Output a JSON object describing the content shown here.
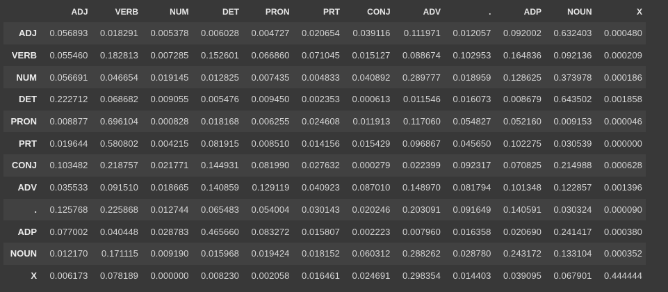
{
  "table": {
    "columns": [
      "ADJ",
      "VERB",
      "NUM",
      "DET",
      "PRON",
      "PRT",
      "CONJ",
      "ADV",
      ".",
      "ADP",
      "NOUN",
      "X"
    ],
    "rows": [
      {
        "label": "ADJ",
        "values": [
          "0.056893",
          "0.018291",
          "0.005378",
          "0.006028",
          "0.004727",
          "0.020654",
          "0.039116",
          "0.111971",
          "0.012057",
          "0.092002",
          "0.632403",
          "0.000480"
        ]
      },
      {
        "label": "VERB",
        "values": [
          "0.055460",
          "0.182813",
          "0.007285",
          "0.152601",
          "0.066860",
          "0.071045",
          "0.015127",
          "0.088674",
          "0.102953",
          "0.164836",
          "0.092136",
          "0.000209"
        ]
      },
      {
        "label": "NUM",
        "values": [
          "0.056691",
          "0.046654",
          "0.019145",
          "0.012825",
          "0.007435",
          "0.004833",
          "0.040892",
          "0.289777",
          "0.018959",
          "0.128625",
          "0.373978",
          "0.000186"
        ]
      },
      {
        "label": "DET",
        "values": [
          "0.222712",
          "0.068682",
          "0.009055",
          "0.005476",
          "0.009450",
          "0.002353",
          "0.000613",
          "0.011546",
          "0.016073",
          "0.008679",
          "0.643502",
          "0.001858"
        ]
      },
      {
        "label": "PRON",
        "values": [
          "0.008877",
          "0.696104",
          "0.000828",
          "0.018168",
          "0.006255",
          "0.024608",
          "0.011913",
          "0.117060",
          "0.054827",
          "0.052160",
          "0.009153",
          "0.000046"
        ]
      },
      {
        "label": "PRT",
        "values": [
          "0.019644",
          "0.580802",
          "0.004215",
          "0.081915",
          "0.008510",
          "0.014156",
          "0.015429",
          "0.096867",
          "0.045650",
          "0.102275",
          "0.030539",
          "0.000000"
        ]
      },
      {
        "label": "CONJ",
        "values": [
          "0.103482",
          "0.218757",
          "0.021771",
          "0.144931",
          "0.081990",
          "0.027632",
          "0.000279",
          "0.022399",
          "0.092317",
          "0.070825",
          "0.214988",
          "0.000628"
        ]
      },
      {
        "label": "ADV",
        "values": [
          "0.035533",
          "0.091510",
          "0.018665",
          "0.140859",
          "0.129119",
          "0.040923",
          "0.087010",
          "0.148970",
          "0.081794",
          "0.101348",
          "0.122857",
          "0.001396"
        ]
      },
      {
        "label": ".",
        "values": [
          "0.125768",
          "0.225868",
          "0.012744",
          "0.065483",
          "0.054004",
          "0.030143",
          "0.020246",
          "0.203091",
          "0.091649",
          "0.140591",
          "0.030324",
          "0.000090"
        ]
      },
      {
        "label": "ADP",
        "values": [
          "0.077002",
          "0.040448",
          "0.028783",
          "0.465660",
          "0.083272",
          "0.015807",
          "0.002223",
          "0.007960",
          "0.016358",
          "0.020690",
          "0.241417",
          "0.000380"
        ]
      },
      {
        "label": "NOUN",
        "values": [
          "0.012170",
          "0.171115",
          "0.009190",
          "0.015968",
          "0.019424",
          "0.018152",
          "0.060312",
          "0.288262",
          "0.028780",
          "0.243172",
          "0.133104",
          "0.000352"
        ]
      },
      {
        "label": "X",
        "values": [
          "0.006173",
          "0.078189",
          "0.000000",
          "0.008230",
          "0.002058",
          "0.016461",
          "0.024691",
          "0.298354",
          "0.014403",
          "0.039095",
          "0.067901",
          "0.444444"
        ]
      }
    ]
  },
  "colors": {
    "background": "#383838",
    "row_stripe": "#414141",
    "text": "#d5d5d5",
    "header_text": "#e6e6e6"
  }
}
